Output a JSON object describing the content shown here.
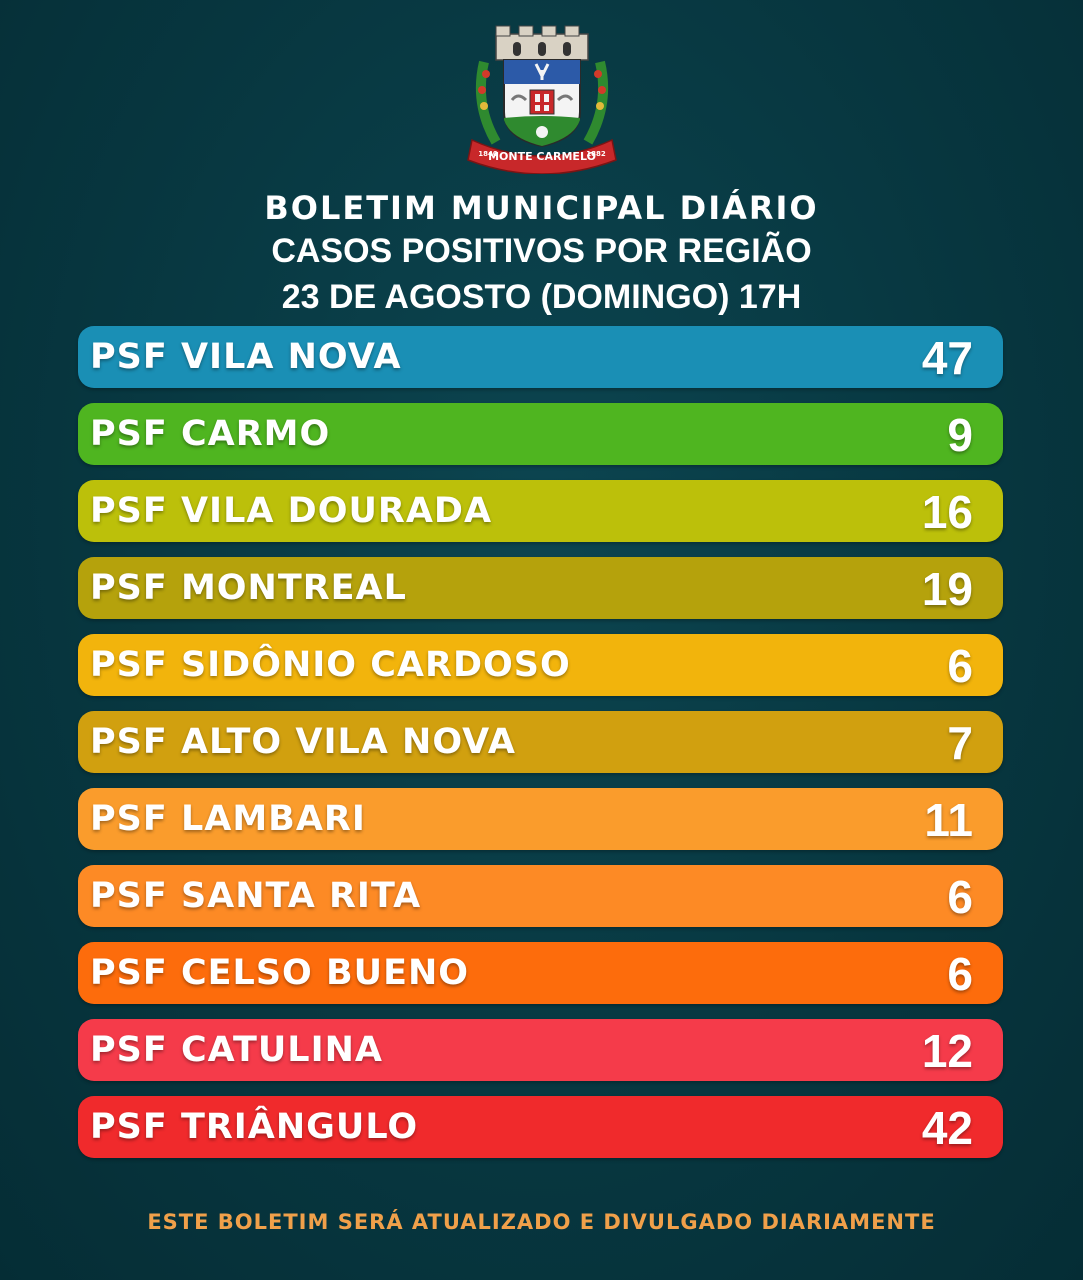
{
  "crest": {
    "ribbon_text": "MONTE CARMELO",
    "year_left": "1840",
    "year_right": "1882"
  },
  "header": {
    "line1": "BOLETIM MUNICIPAL DIÁRIO",
    "line2": "CASOS POSITIVOS POR REGIÃO",
    "line3": "23 DE AGOSTO (DOMINGO) 17H"
  },
  "regions": [
    {
      "name": "PSF VILA NOVA",
      "count": "47",
      "color": "#1a8fb5"
    },
    {
      "name": "PSF CARMO",
      "count": "9",
      "color": "#4fb520"
    },
    {
      "name": "PSF VILA DOURADA",
      "count": "16",
      "color": "#bcc00a"
    },
    {
      "name": "PSF MONTREAL",
      "count": "19",
      "color": "#b5a20c"
    },
    {
      "name": "PSF SIDÔNIO CARDOSO",
      "count": "6",
      "color": "#f2b40c"
    },
    {
      "name": "PSF ALTO VILA NOVA",
      "count": "7",
      "color": "#d1a00f"
    },
    {
      "name": "PSF LAMBARI",
      "count": "11",
      "color": "#fa9c2c"
    },
    {
      "name": "PSF SANTA RITA",
      "count": "6",
      "color": "#fd8a25"
    },
    {
      "name": "PSF CELSO BUENO",
      "count": "6",
      "color": "#fd6c0c"
    },
    {
      "name": "PSF CATULINA",
      "count": "12",
      "color": "#f53b4a"
    },
    {
      "name": "PSF TRIÂNGULO",
      "count": "42",
      "color": "#f02a2c"
    }
  ],
  "footer": {
    "text": "ESTE BOLETIM SERÁ ATUALIZADO E DIVULGADO DIARIAMENTE"
  }
}
